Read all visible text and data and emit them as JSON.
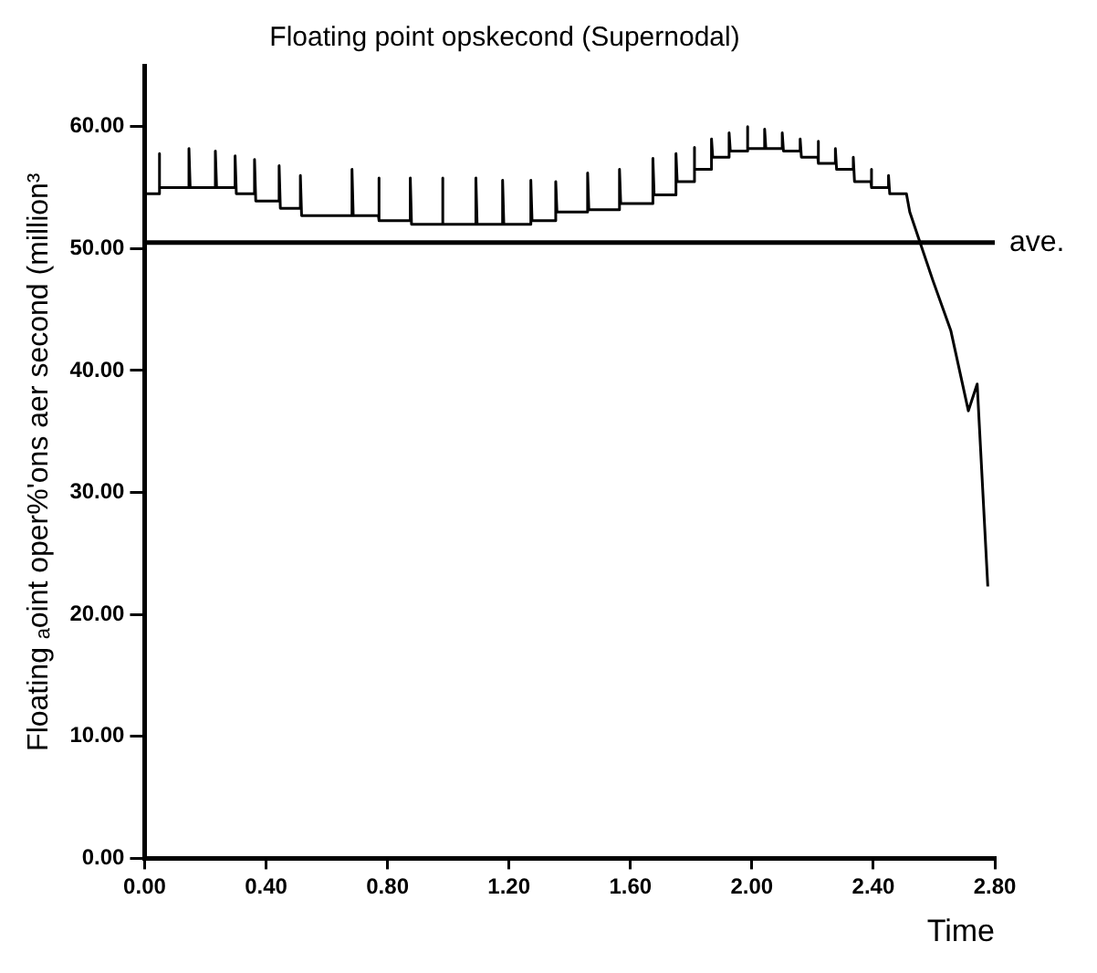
{
  "chart_data": {
    "type": "line",
    "title": "Floating point opskecond (Supernodal)",
    "xlabel": "Time",
    "ylabel": "Floating ₐoint oper%'ons aer second (million³",
    "series": [
      {
        "color": "#000000",
        "x": [
          0,
          0,
          0,
          0.047,
          0.047,
          0.051,
          0.146,
          0.146,
          0.15,
          0.233,
          0.233,
          0.237,
          0.298,
          0.298,
          0.302,
          0.362,
          0.362,
          0.366,
          0.443,
          0.443,
          0.447,
          0.513,
          0.513,
          0.517,
          0.683,
          0.683,
          0.687,
          0.77,
          0.77,
          0.774,
          0.875,
          0.875,
          0.879,
          0.98,
          0.98,
          0.984,
          1.091,
          1.091,
          1.095,
          1.179,
          1.179,
          1.183,
          1.272,
          1.272,
          1.276,
          1.354,
          1.354,
          1.358,
          1.459,
          1.459,
          1.463,
          1.564,
          1.564,
          1.568,
          1.674,
          1.674,
          1.678,
          1.75,
          1.75,
          1.754,
          1.809,
          1.809,
          1.813,
          1.867,
          1.867,
          1.871,
          1.925,
          1.925,
          1.929,
          1.984,
          1.984,
          1.988,
          2.042,
          2.042,
          2.046,
          2.1,
          2.1,
          2.104,
          2.159,
          2.159,
          2.163,
          2.217,
          2.217,
          2.221,
          2.275,
          2.275,
          2.279,
          2.334,
          2.334,
          2.338,
          2.392,
          2.392,
          2.396,
          2.45,
          2.45,
          2.454,
          2.509,
          2.509,
          2.52,
          2.596,
          2.655,
          2.713,
          2.742,
          2.777
        ],
        "values": [
          11,
          54.5,
          54.5,
          54.5,
          57.8,
          55,
          55,
          58.2,
          55,
          55,
          58,
          55,
          55,
          57.6,
          54.5,
          54.5,
          57.3,
          53.9,
          53.9,
          56.8,
          53.3,
          53.3,
          56,
          52.7,
          52.7,
          56.5,
          52.7,
          52.7,
          55.8,
          52.3,
          52.3,
          55.8,
          52,
          52,
          55.8,
          52,
          52,
          55.8,
          52,
          52,
          55.6,
          52,
          52,
          55.6,
          52.3,
          52.3,
          55.5,
          53,
          53,
          56.2,
          53.2,
          53.2,
          56.5,
          53.7,
          53.7,
          57.4,
          54.4,
          54.4,
          57.8,
          55.5,
          55.5,
          58.3,
          56.5,
          56.5,
          59,
          57.5,
          57.5,
          59.5,
          58,
          58,
          60,
          58.2,
          58.2,
          59.8,
          58.2,
          58.2,
          59.5,
          58,
          58,
          59,
          57.5,
          57.5,
          58.8,
          57,
          57,
          58.2,
          56.5,
          56.5,
          57.5,
          55.5,
          55.5,
          56.5,
          55,
          55,
          56,
          54.5,
          54.5,
          54.5,
          53,
          47.4,
          43.3,
          36.7,
          38.9,
          22.3
        ]
      }
    ],
    "xlim": [
      0,
      2.8
    ],
    "xticks": [
      {
        "value": 0,
        "label": "0.00"
      },
      {
        "value": 0.4,
        "label": "0.40"
      },
      {
        "value": 0.8,
        "label": "0.80"
      },
      {
        "value": 1.2,
        "label": "1.20"
      },
      {
        "value": 1.6,
        "label": "1.60"
      },
      {
        "value": 2.0,
        "label": "2.00"
      },
      {
        "value": 2.4,
        "label": "2.40"
      },
      {
        "value": 2.8,
        "label": "2.80"
      }
    ],
    "ylim": [
      0,
      65
    ],
    "yticks": [
      {
        "value": 0,
        "label": "0.00"
      },
      {
        "value": 10,
        "label": "10.00"
      },
      {
        "value": 20,
        "label": "20.00"
      },
      {
        "value": 30,
        "label": "30.00"
      },
      {
        "value": 40,
        "label": "40.00"
      },
      {
        "value": 50,
        "label": "50.00"
      },
      {
        "value": 60,
        "label": "60.00"
      }
    ],
    "ref_lines": [
      {
        "axis": "y",
        "value": 50.5,
        "label": "ave.",
        "color": "#000000"
      }
    ],
    "grid": false,
    "legend": false,
    "marker": "none",
    "line_style": "solid"
  }
}
